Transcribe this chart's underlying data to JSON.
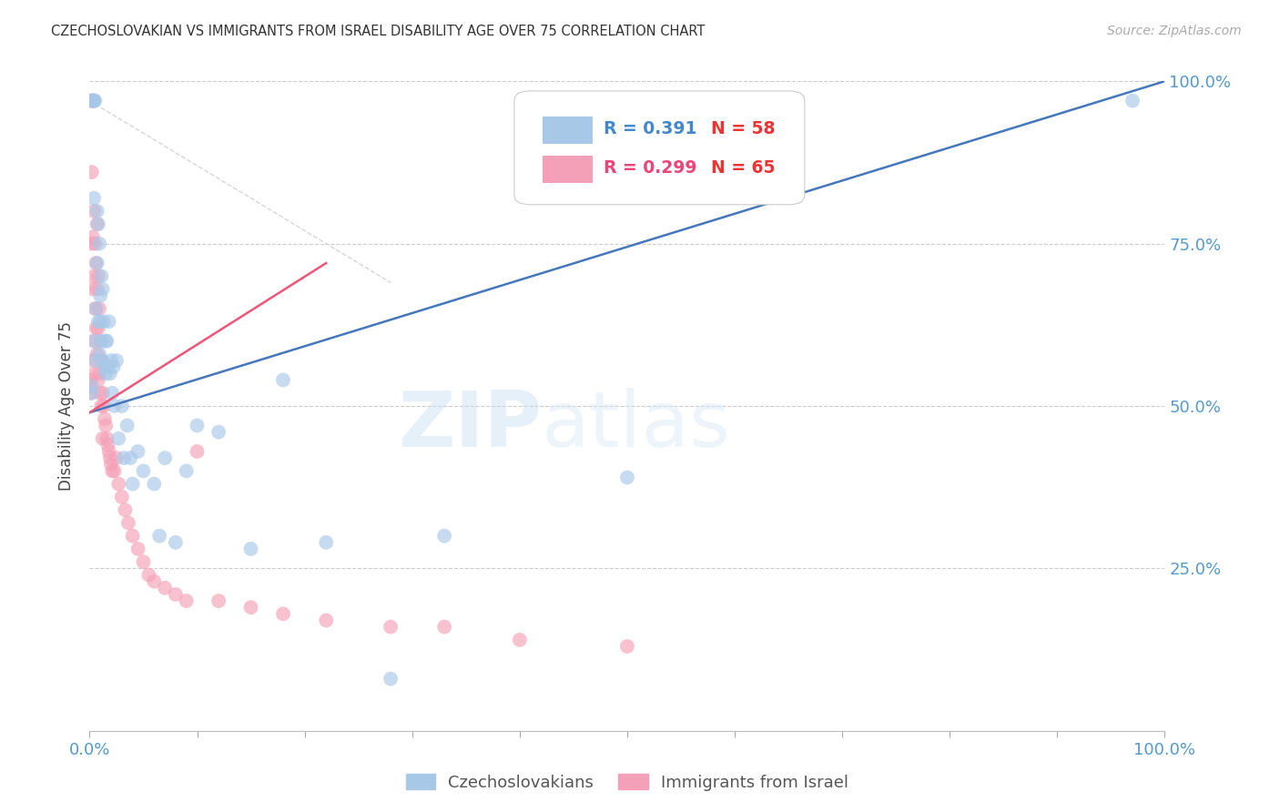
{
  "title": "CZECHOSLOVAKIAN VS IMMIGRANTS FROM ISRAEL DISABILITY AGE OVER 75 CORRELATION CHART",
  "source": "Source: ZipAtlas.com",
  "ylabel": "Disability Age Over 75",
  "xmin": 0.0,
  "xmax": 1.0,
  "ymin": 0.0,
  "ymax": 1.0,
  "xtick_positions": [
    0.0,
    0.1,
    0.2,
    0.3,
    0.4,
    0.5,
    0.6,
    0.7,
    0.8,
    0.9,
    1.0
  ],
  "xtick_labels_ends": [
    "0.0%",
    "100.0%"
  ],
  "ytick_positions": [
    0.25,
    0.5,
    0.75,
    1.0
  ],
  "ytick_labels": [
    "25.0%",
    "50.0%",
    "75.0%",
    "100.0%"
  ],
  "grid_color": "#cccccc",
  "watermark_zip": "ZIP",
  "watermark_atlas": "atlas",
  "legend_r1": "R = 0.391",
  "legend_n1": "N = 58",
  "legend_r2": "R = 0.299",
  "legend_n2": "N = 65",
  "blue_color": "#a8c8e8",
  "pink_color": "#f4a0b8",
  "blue_line_color": "#4477bb",
  "pink_line_color": "#ee5577",
  "ref_line_color": "#cccccc",
  "title_color": "#333333",
  "axis_color": "#5599cc",
  "legend_blue_r_color": "#4488cc",
  "legend_blue_n_color": "#ee3333",
  "legend_pink_r_color": "#ee4477",
  "legend_pink_n_color": "#ee3333",
  "bottom_legend_color": "#555555",
  "blue_x": [
    0.002,
    0.002,
    0.003,
    0.003,
    0.004,
    0.004,
    0.004,
    0.005,
    0.005,
    0.006,
    0.006,
    0.007,
    0.007,
    0.008,
    0.008,
    0.009,
    0.009,
    0.01,
    0.01,
    0.011,
    0.011,
    0.012,
    0.012,
    0.013,
    0.014,
    0.015,
    0.015,
    0.016,
    0.017,
    0.018,
    0.019,
    0.02,
    0.021,
    0.022,
    0.023,
    0.025,
    0.027,
    0.03,
    0.032,
    0.035,
    0.038,
    0.04,
    0.045,
    0.05,
    0.06,
    0.065,
    0.07,
    0.08,
    0.09,
    0.1,
    0.12,
    0.15,
    0.18,
    0.22,
    0.28,
    0.33,
    0.5,
    0.97
  ],
  "blue_y": [
    0.52,
    0.53,
    0.97,
    0.97,
    0.97,
    0.97,
    0.82,
    0.97,
    0.6,
    0.57,
    0.65,
    0.8,
    0.72,
    0.78,
    0.63,
    0.75,
    0.58,
    0.67,
    0.63,
    0.7,
    0.6,
    0.68,
    0.57,
    0.63,
    0.56,
    0.6,
    0.55,
    0.6,
    0.56,
    0.63,
    0.55,
    0.57,
    0.52,
    0.56,
    0.5,
    0.57,
    0.45,
    0.5,
    0.42,
    0.47,
    0.42,
    0.38,
    0.43,
    0.4,
    0.38,
    0.3,
    0.42,
    0.29,
    0.4,
    0.47,
    0.46,
    0.28,
    0.54,
    0.29,
    0.08,
    0.3,
    0.39,
    0.97
  ],
  "pink_x": [
    0.001,
    0.001,
    0.001,
    0.002,
    0.002,
    0.002,
    0.002,
    0.003,
    0.003,
    0.003,
    0.003,
    0.004,
    0.004,
    0.004,
    0.005,
    0.005,
    0.005,
    0.006,
    0.006,
    0.007,
    0.007,
    0.007,
    0.008,
    0.008,
    0.008,
    0.009,
    0.009,
    0.01,
    0.01,
    0.011,
    0.011,
    0.012,
    0.012,
    0.013,
    0.014,
    0.015,
    0.016,
    0.017,
    0.018,
    0.019,
    0.02,
    0.021,
    0.023,
    0.025,
    0.027,
    0.03,
    0.033,
    0.036,
    0.04,
    0.045,
    0.05,
    0.055,
    0.06,
    0.07,
    0.08,
    0.09,
    0.1,
    0.12,
    0.15,
    0.18,
    0.22,
    0.28,
    0.33,
    0.4,
    0.5
  ],
  "pink_y": [
    0.52,
    0.53,
    0.54,
    0.97,
    0.97,
    0.86,
    0.75,
    0.97,
    0.76,
    0.68,
    0.57,
    0.8,
    0.7,
    0.6,
    0.75,
    0.65,
    0.55,
    0.72,
    0.62,
    0.78,
    0.68,
    0.58,
    0.7,
    0.62,
    0.54,
    0.65,
    0.55,
    0.6,
    0.52,
    0.57,
    0.5,
    0.52,
    0.45,
    0.5,
    0.48,
    0.47,
    0.45,
    0.44,
    0.43,
    0.42,
    0.41,
    0.4,
    0.4,
    0.42,
    0.38,
    0.36,
    0.34,
    0.32,
    0.3,
    0.28,
    0.26,
    0.24,
    0.23,
    0.22,
    0.21,
    0.2,
    0.43,
    0.2,
    0.19,
    0.18,
    0.17,
    0.16,
    0.16,
    0.14,
    0.13
  ],
  "blue_line_x0": 0.0,
  "blue_line_x1": 1.0,
  "blue_line_y0": 0.49,
  "blue_line_y1": 1.0,
  "pink_line_x0": 0.0,
  "pink_line_x1": 0.22,
  "pink_line_y0": 0.49,
  "pink_line_y1": 0.72,
  "ref_line_x0": 0.0,
  "ref_line_x1": 0.28,
  "ref_line_y0": 0.97,
  "ref_line_y1": 0.69
}
